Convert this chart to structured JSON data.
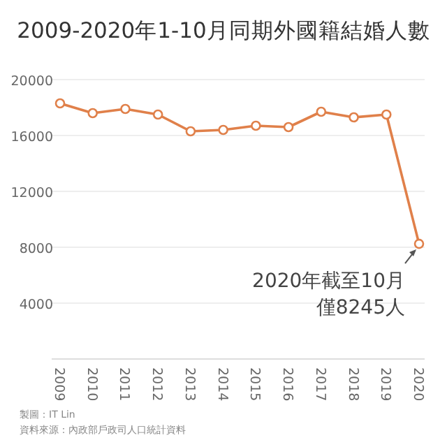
{
  "chart_data": {
    "type": "line",
    "title": "2009-2020年1-10月同期外國籍結婚人數",
    "categories": [
      "2009",
      "2010",
      "2011",
      "2012",
      "2013",
      "2014",
      "2015",
      "2016",
      "2017",
      "2018",
      "2019",
      "2020"
    ],
    "series": [
      {
        "color": "#e0804a",
        "values": [
          18300,
          17600,
          17900,
          17500,
          16300,
          16400,
          16700,
          16600,
          17700,
          17300,
          17500,
          8245
        ]
      }
    ],
    "ylim": [
      0,
      20000
    ],
    "yticks": [
      4000,
      8000,
      12000,
      16000,
      20000
    ],
    "grid": "y",
    "marker": "circle",
    "line_style": "solid",
    "annotations": [
      {
        "text": "2020年截至10月僅8245人",
        "x": "2020",
        "y": 8245
      },
      "製圖：IT Lin",
      "資料來源：內政部戶政司人口統計資料"
    ]
  }
}
